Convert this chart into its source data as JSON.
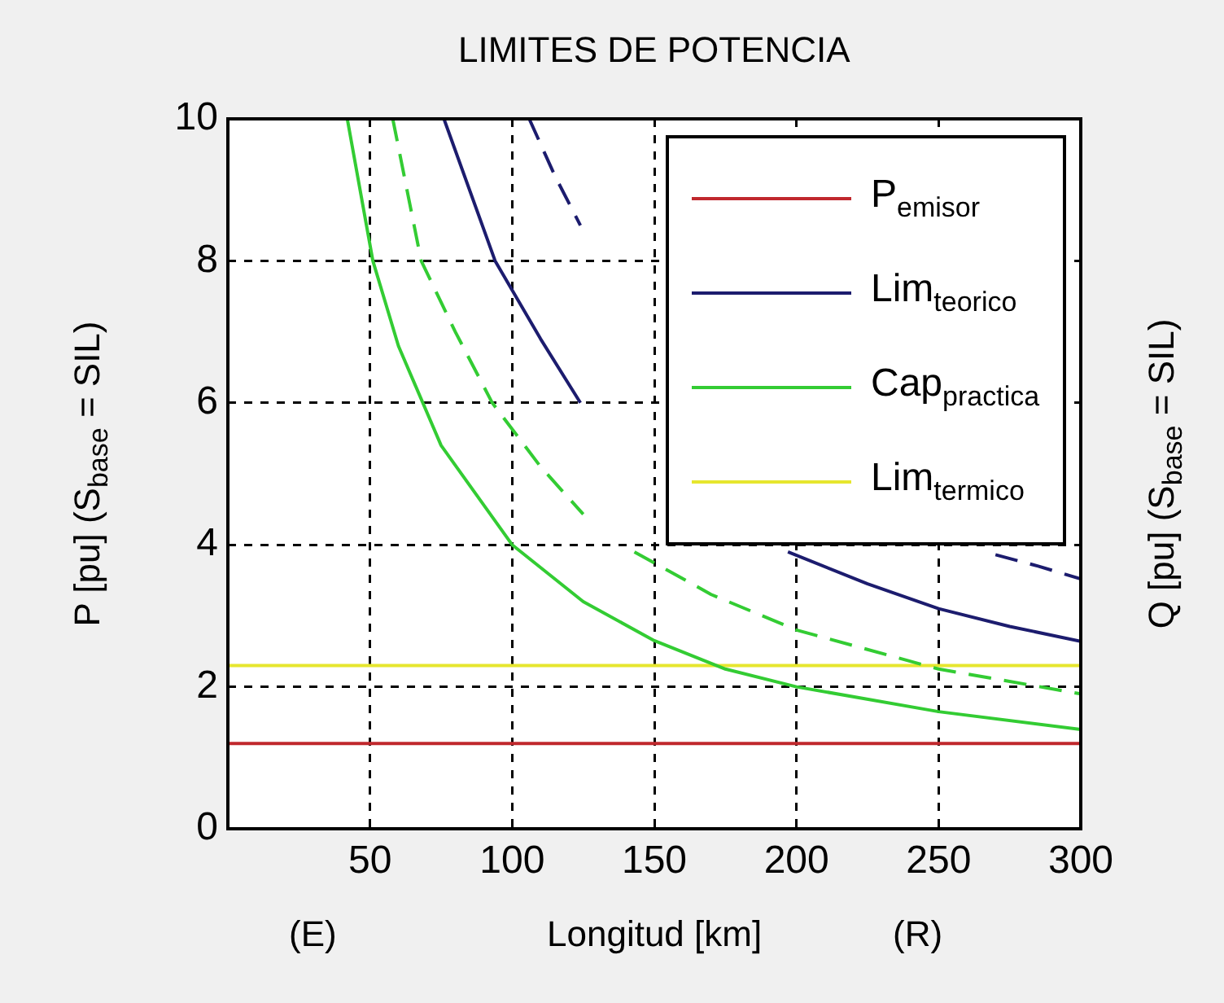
{
  "chart_data": {
    "type": "line",
    "title": "LIMITES DE POTENCIA",
    "xlabel": "Longitud [km]",
    "ylabel": "P [pu]  (S$_{base}$ = SIL)",
    "y2label": "Q [pu]  (S$_{base}$ = SIL)",
    "annotations": [
      "(E)",
      "(R)"
    ],
    "xlim": [
      0,
      300
    ],
    "xticks": [
      50,
      100,
      150,
      200,
      250,
      300
    ],
    "ylim": [
      0,
      10
    ],
    "yticks": [
      0,
      2,
      4,
      6,
      8,
      10
    ],
    "grid": true,
    "legend": "top right",
    "marker": "none",
    "series": [
      {
        "name": "P$_{emisor}$",
        "color": "#c0282d",
        "x": [
          0,
          300
        ],
        "values": [
          1.2,
          1.2
        ],
        "line_style": "solid"
      },
      {
        "name": "Lim$_{teorico}$",
        "color": "#1c1c6e",
        "x": [
          76,
          94,
          110,
          124,
          130,
          190,
          197,
          225,
          250,
          275,
          300
        ],
        "values": [
          10,
          8,
          6.9,
          6,
          null,
          null,
          3.9,
          3.45,
          3.1,
          2.85,
          2.64
        ],
        "line_style": "solid"
      },
      {
        "color": "#1c1c6e",
        "x": [
          106,
          115,
          124,
          130,
          260,
          270,
          285,
          300
        ],
        "values": [
          10,
          9.2,
          8.5,
          null,
          null,
          3.86,
          3.7,
          3.52
        ],
        "line_style": "dashed"
      },
      {
        "name": "Cap$_{practica}$",
        "color": "#33cc33",
        "x": [
          42,
          51,
          60,
          75,
          100,
          125,
          150,
          175,
          200,
          250,
          300
        ],
        "values": [
          10,
          8,
          6.8,
          5.4,
          4,
          3.2,
          2.65,
          2.25,
          2,
          1.65,
          1.4
        ],
        "line_style": "solid"
      },
      {
        "color": "#33cc33",
        "x": [
          58,
          68,
          80,
          93,
          110,
          125,
          133,
          143,
          170,
          200,
          250,
          300
        ],
        "values": [
          10,
          8,
          7,
          6,
          5.1,
          4.43,
          null,
          3.9,
          3.3,
          2.8,
          2.25,
          1.9
        ],
        "line_style": "dashed"
      },
      {
        "name": "Lim$_{termico}$",
        "color": "#e6e62e",
        "x": [
          0,
          300
        ],
        "values": [
          2.3,
          2.3
        ],
        "line_style": "solid"
      }
    ]
  }
}
